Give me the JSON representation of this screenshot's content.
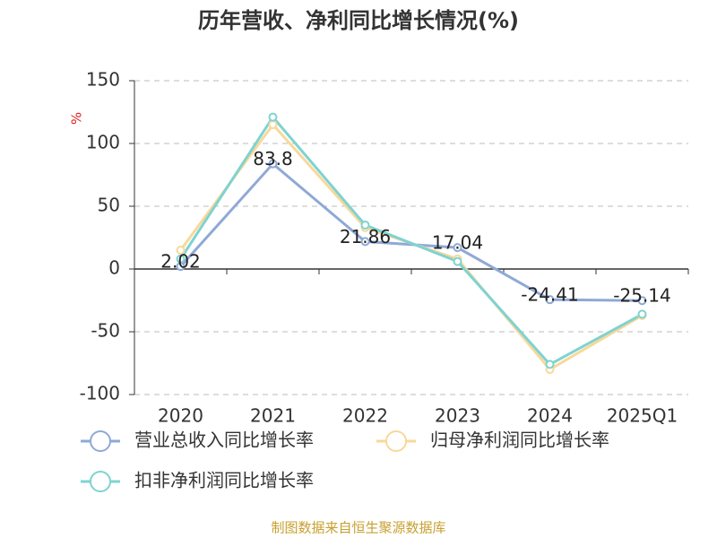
{
  "chart_data": {
    "type": "line",
    "title": "历年营收、净利同比增长情况(%)",
    "y_unit": "%",
    "categories": [
      "2020",
      "2021",
      "2022",
      "2023",
      "2024",
      "2025Q1"
    ],
    "series": [
      {
        "name": "营业总收入同比增长率",
        "color": "#8fa9d6",
        "values": [
          2.02,
          83.8,
          21.86,
          17.04,
          -24.41,
          -25.14
        ],
        "show_labels": true
      },
      {
        "name": "归母净利润同比增长率",
        "color": "#f8d89a",
        "values": [
          15,
          115,
          33,
          8,
          -80,
          -37
        ],
        "show_labels": false
      },
      {
        "name": "扣非净利润同比增长率",
        "color": "#7ed3d1",
        "values": [
          8,
          121,
          35,
          6,
          -76,
          -36
        ],
        "show_labels": false
      }
    ],
    "ylim": [
      -100,
      150
    ],
    "yticks": [
      -100,
      -50,
      0,
      50,
      100,
      150
    ],
    "grid": true,
    "source": "制图数据来自恒生聚源数据库"
  }
}
